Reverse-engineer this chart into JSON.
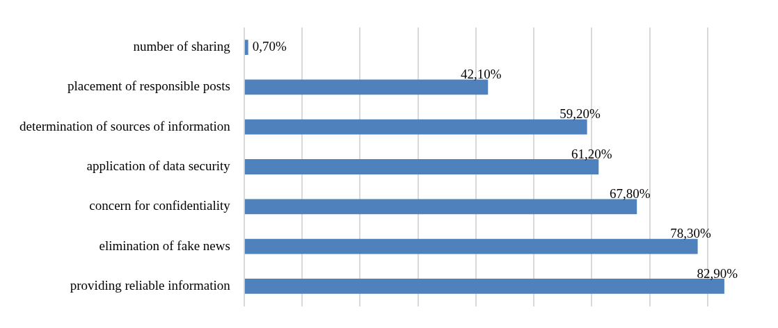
{
  "chart_data": {
    "type": "bar",
    "orientation": "horizontal",
    "categories": [
      "number of sharing",
      "placement of responsible posts",
      "determination of sources of information",
      "application of data security",
      "concern for confidentiality",
      "elimination of fake news",
      "providing reliable information"
    ],
    "values": [
      0.7,
      42.1,
      59.2,
      61.2,
      67.8,
      78.3,
      82.9
    ],
    "value_labels": [
      "0,70%",
      "42,10%",
      "59,20%",
      "61,20%",
      "67,80%",
      "78,30%",
      "82,90%"
    ],
    "color": "#4f81bd",
    "xticks": [
      {
        "value": 0,
        "label": null
      },
      {
        "value": 10,
        "label": null
      },
      {
        "value": 20,
        "label": null
      },
      {
        "value": 30,
        "label": null
      },
      {
        "value": 40,
        "label": null
      },
      {
        "value": 50,
        "label": null
      },
      {
        "value": 60,
        "label": null
      },
      {
        "value": 70,
        "label": null
      },
      {
        "value": 80,
        "label": null
      }
    ],
    "grid": "x",
    "tick_labels": "y",
    "legend": false
  }
}
